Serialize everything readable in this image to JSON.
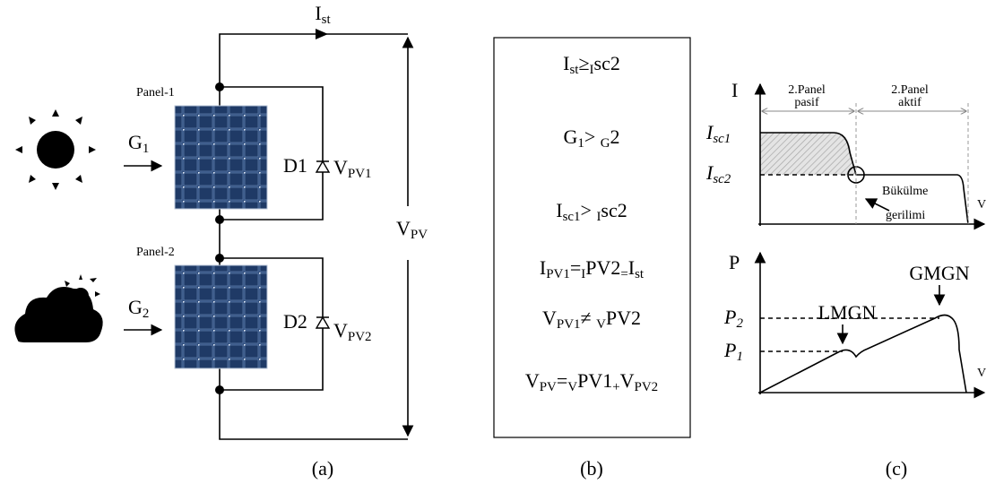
{
  "panel_a": {
    "current": [
      "I",
      "st"
    ],
    "panel1": "Panel-1",
    "panel2": "Panel-2",
    "g1": [
      "G",
      "1"
    ],
    "g2": [
      "G",
      "2"
    ],
    "d1": "D1",
    "d2": "D2",
    "vpv1": [
      "V",
      "PV1"
    ],
    "vpv2": [
      "V",
      "PV2"
    ],
    "vpv": [
      "V",
      "PV"
    ],
    "caption": "(a)"
  },
  "panel_b": {
    "equations": [
      [
        "I",
        "st",
        "≥",
        "I",
        "sc2"
      ],
      [
        "G",
        "1",
        "> ",
        "G",
        "2"
      ],
      [
        "I",
        "sc1",
        "> ",
        "I",
        "sc2"
      ],
      [
        "I",
        "PV1",
        "=",
        "I",
        "PV2",
        "=",
        "I",
        "st"
      ],
      [
        "V",
        "PV1",
        "≠ ",
        "V",
        "PV2"
      ],
      [
        "V",
        "PV",
        "=",
        "V",
        "PV1",
        "+",
        "V",
        "PV2"
      ]
    ],
    "caption": "(b)"
  },
  "panel_c": {
    "i_axis": "I",
    "v_axis_top": "V",
    "isc1": [
      "I",
      "sc1"
    ],
    "isc2": [
      "I",
      "sc2"
    ],
    "passive": [
      "2.Panel",
      "pasif"
    ],
    "active": [
      "2.Panel",
      "aktif"
    ],
    "knee": [
      "Bükülme",
      "gerilimi"
    ],
    "p_axis": "P",
    "v_axis_bottom": "V",
    "p2": [
      "P",
      "2"
    ],
    "p1": [
      "P",
      "1"
    ],
    "lmgn": "LMGN",
    "gmgn": "GMGN",
    "caption": "(c)"
  }
}
